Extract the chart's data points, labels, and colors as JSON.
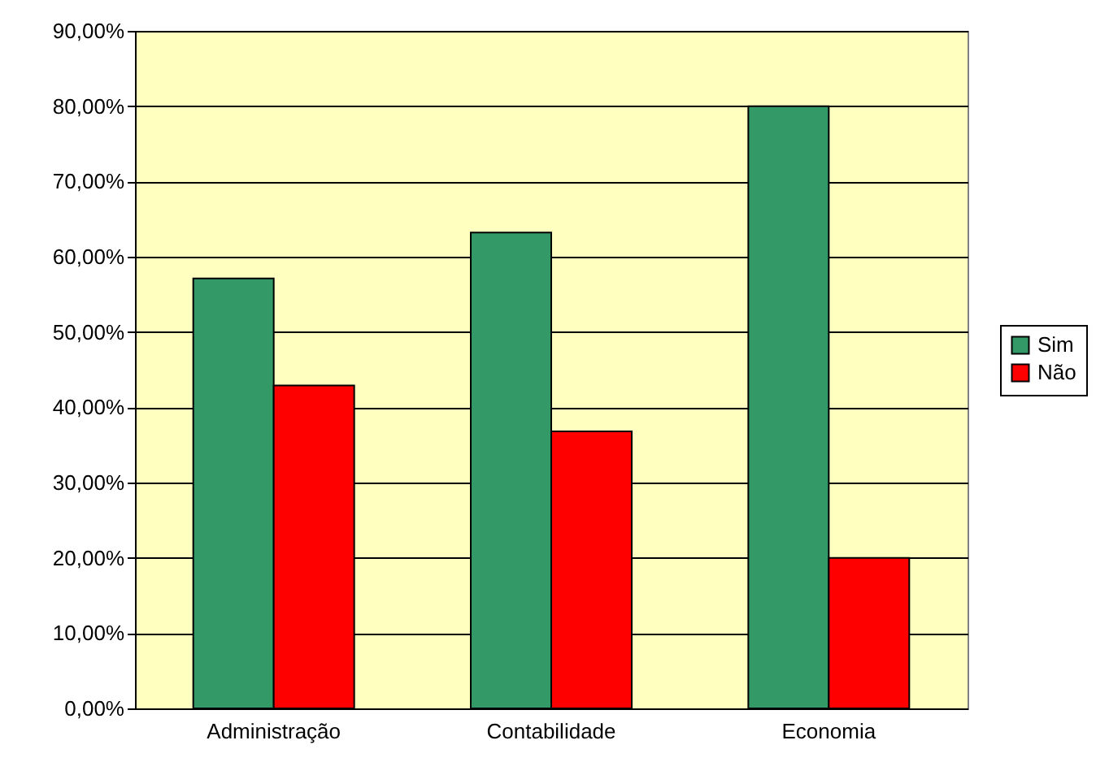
{
  "chart_data": {
    "type": "bar",
    "categories": [
      "Administração",
      "Contabilidade",
      "Economia"
    ],
    "series": [
      {
        "name": "Sim",
        "color": "#339966",
        "values": [
          57.1,
          63.2,
          80
        ]
      },
      {
        "name": "Não",
        "color": "#ff0000",
        "values": [
          42.9,
          36.8,
          20
        ]
      }
    ],
    "ylim": [
      0,
      90
    ],
    "yticks": [
      {
        "value": 0,
        "label": "0,00%"
      },
      {
        "value": 10,
        "label": "10,00%"
      },
      {
        "value": 20,
        "label": "20,00%"
      },
      {
        "value": 30,
        "label": "30,00%"
      },
      {
        "value": 40,
        "label": "40,00%"
      },
      {
        "value": 50,
        "label": "50,00%"
      },
      {
        "value": 60,
        "label": "60,00%"
      },
      {
        "value": 70,
        "label": "70,00%"
      },
      {
        "value": 80,
        "label": "80,00%"
      },
      {
        "value": 90,
        "label": "90,00%"
      }
    ],
    "grid": "y",
    "legend": "right"
  }
}
